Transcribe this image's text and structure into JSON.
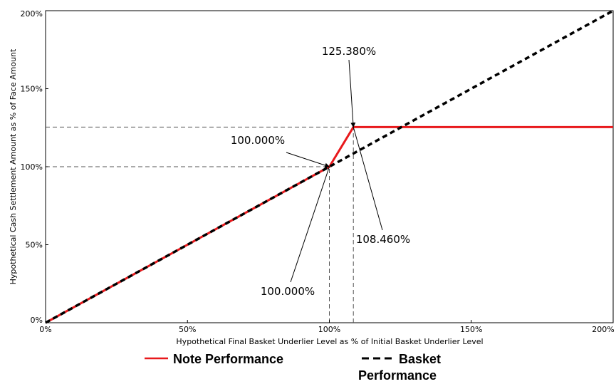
{
  "chart_data": {
    "type": "line",
    "title": "",
    "xlabel": "Hypothetical Final Basket Underlier Level as % of Initial Basket Underlier Level",
    "ylabel": "Hypothetical Cash Settlement Amount as % of Face Amount",
    "xlim": [
      0,
      200
    ],
    "ylim": [
      0,
      200
    ],
    "x_ticks": [
      {
        "value": 0,
        "label": "0%"
      },
      {
        "value": 50,
        "label": "50%"
      },
      {
        "value": 100,
        "label": "100%"
      },
      {
        "value": 150,
        "label": "150%"
      },
      {
        "value": 200,
        "label": "200%"
      }
    ],
    "y_ticks": [
      {
        "value": 0,
        "label": "0%"
      },
      {
        "value": 50,
        "label": "50%"
      },
      {
        "value": 100,
        "label": "100%"
      },
      {
        "value": 150,
        "label": "150%"
      },
      {
        "value": 200,
        "label": "200%"
      }
    ],
    "grid": false,
    "series": [
      {
        "name": "Note Performance",
        "color": "#e8191c",
        "style": "solid",
        "points": [
          [
            0,
            0
          ],
          [
            100,
            100
          ],
          [
            108.46,
            125.38
          ],
          [
            200,
            125.38
          ]
        ]
      },
      {
        "name": "Basket Performance",
        "color": "#000000",
        "style": "dashed",
        "points": [
          [
            0,
            0
          ],
          [
            200,
            200
          ]
        ]
      }
    ],
    "reference_lines": [
      {
        "orientation": "horizontal",
        "value": 125.38,
        "from": 0,
        "to": 108.46
      },
      {
        "orientation": "horizontal",
        "value": 100,
        "from": 0,
        "to": 100
      },
      {
        "orientation": "vertical",
        "value": 100,
        "from": 0,
        "to": 100
      },
      {
        "orientation": "vertical",
        "value": 108.46,
        "from": 0,
        "to": 125.38
      }
    ],
    "annotations": [
      {
        "text": "125.380%",
        "target": [
          108.46,
          125.38
        ],
        "arrow": true
      },
      {
        "text": "100.000%",
        "target": [
          100,
          100
        ],
        "arrow": true
      },
      {
        "text": "108.460%",
        "target": [
          108.46,
          125.38
        ],
        "arrow": false
      },
      {
        "text": "100.000%",
        "target": [
          100,
          100
        ],
        "arrow": false
      }
    ],
    "legend": {
      "position": "bottom-center",
      "entries": [
        {
          "label_lines": [
            "Note Performance"
          ],
          "marker": "solid",
          "color": "#e8191c"
        },
        {
          "label_lines": [
            "Basket",
            "Performance"
          ],
          "marker": "dashed",
          "color": "#000000"
        }
      ]
    }
  }
}
